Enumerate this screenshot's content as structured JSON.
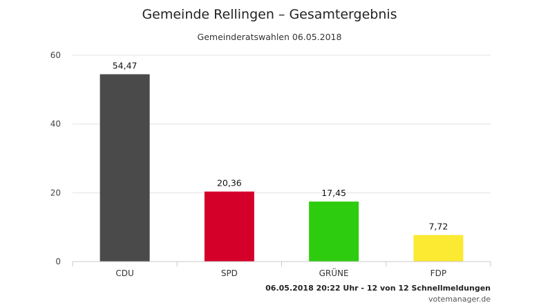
{
  "chart_data": {
    "type": "bar",
    "title": "Gemeinde Rellingen – Gesamtergebnis",
    "subtitle": "Gemeinderatswahlen 06.05.2018",
    "categories": [
      "CDU",
      "SPD",
      "GRÜNE",
      "FDP"
    ],
    "values": [
      54.47,
      20.36,
      17.45,
      7.72
    ],
    "data_labels": [
      "54,47",
      "20,36",
      "17,45",
      "7,72"
    ],
    "colors": [
      "#4a4a4a",
      "#d5002a",
      "#2ecc0f",
      "#fbe932"
    ],
    "ylim": [
      0,
      60
    ],
    "yticks": [
      0,
      20,
      40,
      60
    ],
    "grid": true,
    "legend": "none",
    "xlabel": "",
    "ylabel": ""
  },
  "footer": {
    "status": "06.05.2018 20:22 Uhr - 12 von 12 Schnellmeldungen",
    "credit": "votemanager.de"
  }
}
